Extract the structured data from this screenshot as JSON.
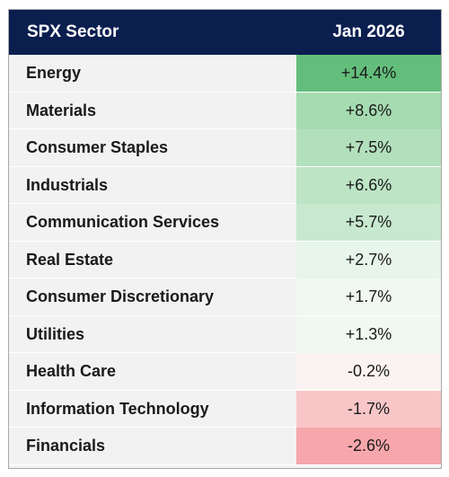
{
  "table": {
    "header": {
      "sector_label": "SPX Sector",
      "period_label": "Jan 2026"
    },
    "rows": [
      {
        "sector": "Energy",
        "value": "+14.4%",
        "color": "#63be7b"
      },
      {
        "sector": "Materials",
        "value": "+8.6%",
        "color": "#a6dbb1"
      },
      {
        "sector": "Consumer Staples",
        "value": "+7.5%",
        "color": "#b3e0bc"
      },
      {
        "sector": "Industrials",
        "value": "+6.6%",
        "color": "#bde4c5"
      },
      {
        "sector": "Communication Services",
        "value": "+5.7%",
        "color": "#c8e9cf"
      },
      {
        "sector": "Real Estate",
        "value": "+2.7%",
        "color": "#e7f5ea"
      },
      {
        "sector": "Consumer Discretionary",
        "value": "+1.7%",
        "color": "#f0f8f1"
      },
      {
        "sector": "Utilities",
        "value": "+1.3%",
        "color": "#eff8f1"
      },
      {
        "sector": "Health Care",
        "value": "-0.2%",
        "color": "#fbf3f2"
      },
      {
        "sector": "Information Technology",
        "value": "-1.7%",
        "color": "#f9c6c8"
      },
      {
        "sector": "Financials",
        "value": "-2.6%",
        "color": "#f7a7ab"
      }
    ]
  }
}
